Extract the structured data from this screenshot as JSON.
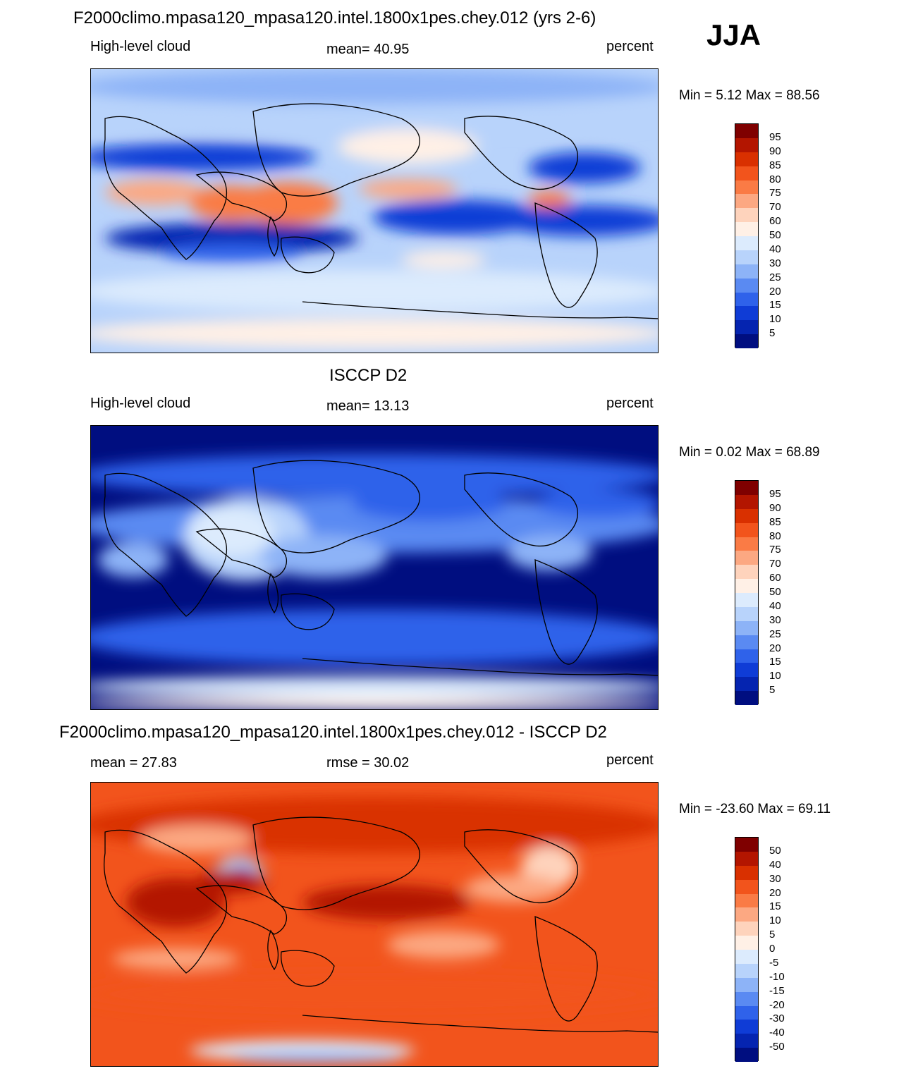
{
  "season": "JJA",
  "panels": [
    {
      "id": "model",
      "title": "F2000climo.mpasa120_mpasa120.intel.1800x1pes.chey.012 (yrs 2-6)",
      "left_label": "High-level cloud",
      "center_label": "mean=  40.95",
      "right_label": "percent",
      "minmax": "Min =   5.12 Max =  88.56",
      "colorbar": {
        "labels": [
          "95",
          "90",
          "85",
          "80",
          "75",
          "70",
          "60",
          "50",
          "40",
          "30",
          "25",
          "20",
          "15",
          "10",
          "5"
        ],
        "colors": [
          "#7f0000",
          "#b31500",
          "#d93000",
          "#f2541c",
          "#fa7b45",
          "#fca882",
          "#fed3bc",
          "#fff0e6",
          "#dcebfd",
          "#b8d3fb",
          "#8db3f7",
          "#5a8af2",
          "#2f62ea",
          "#0f3cd6",
          "#0524b0",
          "#000e80"
        ]
      }
    },
    {
      "id": "obs",
      "title": "ISCCP D2",
      "left_label": "High-level cloud",
      "center_label": "mean=  13.13",
      "right_label": "percent",
      "minmax": "Min =   0.02 Max =  68.89",
      "colorbar": {
        "labels": [
          "95",
          "90",
          "85",
          "80",
          "75",
          "70",
          "60",
          "50",
          "40",
          "30",
          "25",
          "20",
          "15",
          "10",
          "5"
        ],
        "colors": [
          "#7f0000",
          "#b31500",
          "#d93000",
          "#f2541c",
          "#fa7b45",
          "#fca882",
          "#fed3bc",
          "#fff0e6",
          "#dcebfd",
          "#b8d3fb",
          "#8db3f7",
          "#5a8af2",
          "#2f62ea",
          "#0f3cd6",
          "#0524b0",
          "#000e80"
        ]
      }
    },
    {
      "id": "diff",
      "title": "F2000climo.mpasa120_mpasa120.intel.1800x1pes.chey.012 - ISCCP D2",
      "left_label": "mean =  27.83",
      "center_label": "rmse =  30.02",
      "right_label": "percent",
      "minmax": "Min = -23.60 Max =  69.11",
      "colorbar": {
        "labels": [
          "50",
          "40",
          "30",
          "20",
          "15",
          "10",
          "5",
          "0",
          "-5",
          "-10",
          "-15",
          "-20",
          "-30",
          "-40",
          "-50"
        ],
        "colors": [
          "#7f0000",
          "#b31500",
          "#d93000",
          "#f2541c",
          "#fa7b45",
          "#fca882",
          "#fed3bc",
          "#fff0e6",
          "#dcebfd",
          "#b8d3fb",
          "#8db3f7",
          "#5a8af2",
          "#2f62ea",
          "#0f3cd6",
          "#0524b0",
          "#000e80"
        ]
      }
    }
  ],
  "chart_data": [
    {
      "type": "heatmap",
      "title": "F2000climo.mpasa120_mpasa120.intel.1800x1pes.chey.012 (yrs 2-6)",
      "variable": "High-level cloud",
      "units": "percent",
      "mean": 40.95,
      "min": 5.12,
      "max": 88.56,
      "contour_levels": [
        5,
        10,
        15,
        20,
        25,
        30,
        40,
        50,
        60,
        70,
        75,
        80,
        85,
        90,
        95
      ]
    },
    {
      "type": "heatmap",
      "title": "ISCCP D2",
      "variable": "High-level cloud",
      "units": "percent",
      "mean": 13.13,
      "min": 0.02,
      "max": 68.89,
      "contour_levels": [
        5,
        10,
        15,
        20,
        25,
        30,
        40,
        50,
        60,
        70,
        75,
        80,
        85,
        90,
        95
      ]
    },
    {
      "type": "heatmap",
      "title": "F2000climo.mpasa120_mpasa120.intel.1800x1pes.chey.012 - ISCCP D2",
      "units": "percent",
      "mean": 27.83,
      "rmse": 30.02,
      "min": -23.6,
      "max": 69.11,
      "contour_levels": [
        -50,
        -40,
        -30,
        -20,
        -15,
        -10,
        -5,
        0,
        5,
        10,
        15,
        20,
        30,
        40,
        50
      ]
    }
  ]
}
